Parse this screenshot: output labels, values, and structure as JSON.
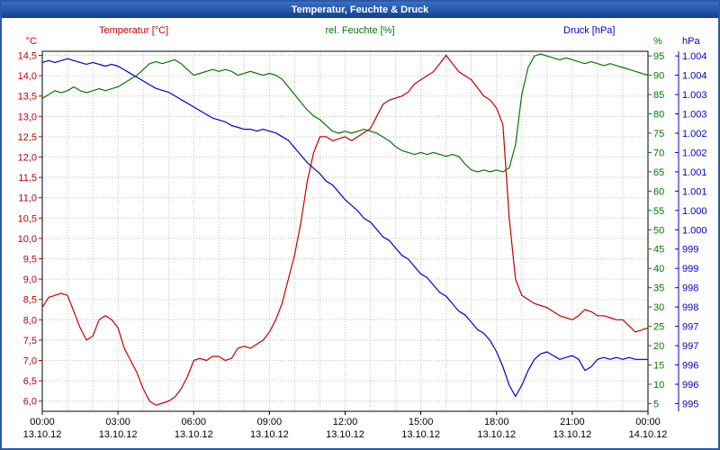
{
  "window": {
    "title": "Temperatur, Feuchte & Druck"
  },
  "legend": [
    {
      "label": "Temperatur [°C]",
      "color": "#c00000"
    },
    {
      "label": "rel. Feuchte [%]",
      "color": "#007800"
    },
    {
      "label": "Druck [hPa]",
      "color": "#0000c8"
    }
  ],
  "chart_data": {
    "type": "line",
    "title": "Temperatur, Feuchte & Druck",
    "grid": true,
    "background": "#ffffff",
    "x_axis": {
      "total_hours": 24,
      "grid_step_hours": 1,
      "ticks": [
        {
          "hour": 0,
          "time": "00:00",
          "date": "13.10.12"
        },
        {
          "hour": 3,
          "time": "03:00",
          "date": "13.10.12"
        },
        {
          "hour": 6,
          "time": "06:00",
          "date": "13.10.12"
        },
        {
          "hour": 9,
          "time": "09:00",
          "date": "13.10.12"
        },
        {
          "hour": 12,
          "time": "12:00",
          "date": "13.10.12"
        },
        {
          "hour": 15,
          "time": "15:00",
          "date": "13.10.12"
        },
        {
          "hour": 18,
          "time": "18:00",
          "date": "13.10.12"
        },
        {
          "hour": 21,
          "time": "21:00",
          "date": "13.10.12"
        },
        {
          "hour": 24,
          "time": "00:00",
          "date": "14.10.12"
        }
      ]
    },
    "axes": {
      "temperature": {
        "unit": "°C",
        "color": "#c00000",
        "axis_min": 5.75,
        "axis_max": 14.6,
        "tick_values": [
          14.5,
          14,
          13.5,
          13,
          12.5,
          12,
          11.5,
          11,
          10.5,
          10,
          9.5,
          9,
          8.5,
          8,
          7.5,
          7,
          6.5,
          6
        ],
        "tick_labels": [
          "14,5",
          "14,0",
          "13,5",
          "13,0",
          "12,5",
          "12,0",
          "11,5",
          "11,0",
          "10,5",
          "10,0",
          "9,5",
          "9,0",
          "8,5",
          "8,0",
          "7,5",
          "7,0",
          "6,5",
          "6,0"
        ]
      },
      "humidity": {
        "unit": "%",
        "color": "#007800",
        "axis_min": 3,
        "axis_max": 96.2,
        "tick_values": [
          95,
          90,
          85,
          80,
          75,
          70,
          65,
          60,
          55,
          50,
          45,
          40,
          35,
          30,
          25,
          20,
          15,
          10,
          5
        ],
        "tick_labels": [
          "95",
          "90",
          "85",
          "80",
          "75",
          "70",
          "65",
          "60",
          "55",
          "50",
          "45",
          "40",
          "35",
          "30",
          "25",
          "20",
          "15",
          "10",
          "5"
        ]
      },
      "pressure": {
        "unit": "hPa",
        "color": "#0000c8",
        "axis_min": 994.9,
        "axis_max": 1004.6,
        "tick_labels": [
          "1.004",
          "1.004",
          "1.003",
          "1.003",
          "1.002",
          "1.002",
          "1.001",
          "1.001",
          "1.000",
          "1.000",
          "999",
          "999",
          "998",
          "998",
          "997",
          "997",
          "996",
          "996",
          "995"
        ]
      }
    },
    "x_hours": [
      0,
      0.25,
      0.5,
      0.75,
      1,
      1.25,
      1.5,
      1.75,
      2,
      2.25,
      2.5,
      2.75,
      3,
      3.25,
      3.5,
      3.75,
      4,
      4.25,
      4.5,
      4.75,
      5,
      5.25,
      5.5,
      5.75,
      6,
      6.25,
      6.5,
      6.75,
      7,
      7.25,
      7.5,
      7.75,
      8,
      8.25,
      8.5,
      8.75,
      9,
      9.25,
      9.5,
      9.75,
      10,
      10.25,
      10.5,
      10.75,
      11,
      11.25,
      11.5,
      11.75,
      12,
      12.25,
      12.5,
      12.75,
      13,
      13.25,
      13.5,
      13.75,
      14,
      14.25,
      14.5,
      14.75,
      15,
      15.25,
      15.5,
      15.75,
      16,
      16.25,
      16.5,
      16.75,
      17,
      17.25,
      17.5,
      17.75,
      18,
      18.25,
      18.5,
      18.75,
      19,
      19.25,
      19.5,
      19.75,
      20,
      20.25,
      20.5,
      20.75,
      21,
      21.25,
      21.5,
      21.75,
      22,
      22.25,
      22.5,
      22.75,
      23,
      23.25,
      23.5,
      23.75,
      24
    ],
    "series": [
      {
        "name": "Temperatur",
        "unit": "°C",
        "axis": "temperature",
        "color": "#c00000",
        "values": [
          8.3,
          8.55,
          8.6,
          8.65,
          8.6,
          8.2,
          7.8,
          7.5,
          7.6,
          8.0,
          8.1,
          8.0,
          7.8,
          7.3,
          7.0,
          6.7,
          6.3,
          6.0,
          5.9,
          5.95,
          6.0,
          6.1,
          6.3,
          6.6,
          7.0,
          7.05,
          7.0,
          7.1,
          7.1,
          7.0,
          7.05,
          7.3,
          7.35,
          7.3,
          7.4,
          7.5,
          7.7,
          8.0,
          8.4,
          9.0,
          9.6,
          10.4,
          11.4,
          12.1,
          12.5,
          12.5,
          12.4,
          12.45,
          12.5,
          12.4,
          12.5,
          12.6,
          12.7,
          13.0,
          13.3,
          13.4,
          13.45,
          13.5,
          13.6,
          13.8,
          13.9,
          14.0,
          14.1,
          14.3,
          14.5,
          14.3,
          14.1,
          14.0,
          13.9,
          13.7,
          13.5,
          13.4,
          13.2,
          12.8,
          10.5,
          9.0,
          8.6,
          8.5,
          8.4,
          8.35,
          8.3,
          8.2,
          8.1,
          8.05,
          8.0,
          8.1,
          8.25,
          8.2,
          8.1,
          8.1,
          8.05,
          8.0,
          8.0,
          7.85,
          7.7,
          7.75,
          7.8
        ]
      },
      {
        "name": "rel. Feuchte",
        "unit": "%",
        "axis": "humidity",
        "color": "#007800",
        "values": [
          84,
          85,
          86,
          85.5,
          86,
          87,
          86,
          85.5,
          86,
          86.5,
          86,
          86.5,
          87,
          88,
          89,
          90,
          91.5,
          93,
          93.5,
          93,
          93.5,
          94,
          93,
          91.5,
          90,
          90.5,
          91,
          91.5,
          91,
          91.5,
          91,
          90,
          90.5,
          91,
          90.5,
          90,
          90.5,
          90,
          89,
          87,
          85,
          83,
          81,
          79.5,
          78.5,
          77,
          75.5,
          75,
          75.5,
          75,
          75.5,
          76,
          75.5,
          75,
          74,
          73,
          71.5,
          70.5,
          70,
          69.5,
          70,
          69.5,
          70,
          69.5,
          69,
          69.5,
          69,
          67,
          65.5,
          65,
          65.5,
          65,
          65.5,
          65,
          66,
          72,
          85,
          92,
          95,
          95.5,
          95,
          94.5,
          94,
          94.5,
          94,
          93.5,
          93,
          93.5,
          93,
          92.5,
          93,
          92.5,
          92,
          91.5,
          91,
          90.5,
          90
        ]
      },
      {
        "name": "Druck",
        "unit": "hPa",
        "axis": "pressure",
        "color": "#0000c8",
        "values": [
          1004.3,
          1004.35,
          1004.3,
          1004.35,
          1004.4,
          1004.35,
          1004.3,
          1004.25,
          1004.3,
          1004.25,
          1004.2,
          1004.25,
          1004.2,
          1004.1,
          1004.0,
          1003.9,
          1003.8,
          1003.7,
          1003.6,
          1003.55,
          1003.5,
          1003.4,
          1003.3,
          1003.2,
          1003.1,
          1003.0,
          1002.9,
          1002.8,
          1002.75,
          1002.7,
          1002.6,
          1002.55,
          1002.5,
          1002.5,
          1002.45,
          1002.5,
          1002.45,
          1002.4,
          1002.3,
          1002.2,
          1002.0,
          1001.8,
          1001.6,
          1001.45,
          1001.3,
          1001.1,
          1001.0,
          1000.8,
          1000.6,
          1000.45,
          1000.3,
          1000.1,
          1000.0,
          999.8,
          999.6,
          999.5,
          999.3,
          999.1,
          999.0,
          998.8,
          998.6,
          998.5,
          998.3,
          998.1,
          998.0,
          997.8,
          997.6,
          997.5,
          997.3,
          997.1,
          997.0,
          996.8,
          996.5,
          996.1,
          995.6,
          995.3,
          995.6,
          996.0,
          996.3,
          996.45,
          996.5,
          996.4,
          996.3,
          996.35,
          996.4,
          996.3,
          996.0,
          996.1,
          996.3,
          996.35,
          996.3,
          996.35,
          996.3,
          996.35,
          996.3,
          996.3,
          996.3
        ]
      }
    ]
  }
}
